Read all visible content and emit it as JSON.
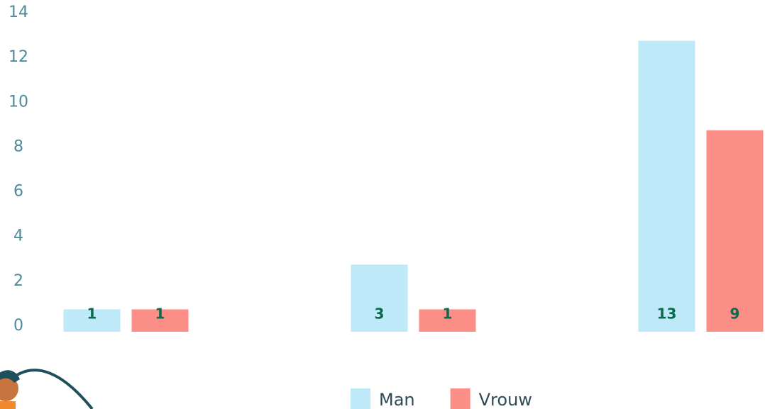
{
  "chart_data": {
    "type": "bar",
    "categories": [
      null,
      null,
      null
    ],
    "series": [
      {
        "name": "Man",
        "color": "#bde9f8",
        "values": [
          1,
          3,
          13
        ]
      },
      {
        "name": "Vrouw",
        "color": "#fb8e86",
        "values": [
          1,
          1,
          9
        ]
      }
    ],
    "ylim": [
      0,
      14
    ],
    "yticks": [
      0,
      2,
      4,
      6,
      8,
      10,
      12,
      14
    ],
    "grid": false,
    "legend": "bottom"
  }
}
